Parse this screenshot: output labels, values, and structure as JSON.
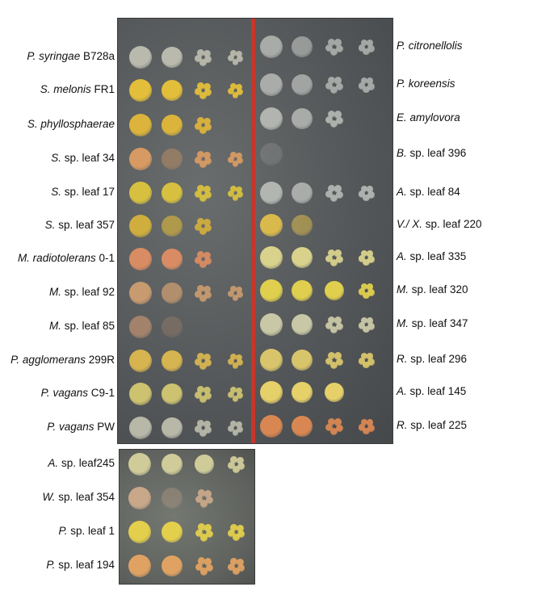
{
  "left_rows": [
    {
      "genus": "P. syringae",
      "rest": " B728a"
    },
    {
      "genus": "S. melonis",
      "rest": " FR1"
    },
    {
      "genus": "S. phyllosphaerae",
      "rest": ""
    },
    {
      "genus": "S.",
      "rest": " sp. leaf 34"
    },
    {
      "genus": "S.",
      "rest": " sp. leaf 17"
    },
    {
      "genus": "S.",
      "rest": " sp. leaf 357"
    },
    {
      "genus": "M. radiotolerans",
      "rest": " 0-1"
    },
    {
      "genus": "M.",
      "rest": " sp. leaf 92"
    },
    {
      "genus": "M.",
      "rest": " sp. leaf 85"
    },
    {
      "genus": "P. agglomerans",
      "rest": " 299R"
    },
    {
      "genus": "P. vagans",
      "rest": " C9-1"
    },
    {
      "genus": "P. vagans",
      "rest": " PW"
    }
  ],
  "right_rows": [
    {
      "genus": "P. citronellolis",
      "rest": ""
    },
    {
      "genus": "P. koreensis",
      "rest": ""
    },
    {
      "genus": "E. amylovora",
      "rest": ""
    },
    {
      "genus": "B.",
      "rest": " sp. leaf 396"
    },
    {
      "genus": "A.",
      "rest": " sp. leaf 84"
    },
    {
      "genus": "V./ X.",
      "rest": " sp. leaf 220"
    },
    {
      "genus": "A.",
      "rest": " sp. leaf 335"
    },
    {
      "genus": "M.",
      "rest": " sp. leaf 320"
    },
    {
      "genus": "M.",
      "rest": " sp. leaf 347"
    },
    {
      "genus": "R.",
      "rest": " sp. leaf 296"
    },
    {
      "genus": "A.",
      "rest": " sp. leaf 145"
    },
    {
      "genus": "R.",
      "rest": " sp. leaf 225"
    }
  ],
  "bottom_rows": [
    {
      "genus": "A.",
      "rest": " sp. leaf245"
    },
    {
      "genus": "W.",
      "rest": " sp. leaf 354"
    },
    {
      "genus": "P.",
      "rest": " sp. leaf 1"
    },
    {
      "genus": "P.",
      "rest": " sp. leaf 194"
    }
  ],
  "colors": {
    "divider": "#c8352a",
    "plate_background": "#55585a"
  }
}
